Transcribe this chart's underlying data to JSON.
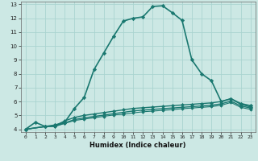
{
  "xlabel": "Humidex (Indice chaleur)",
  "bg_color": "#cce8e4",
  "line_color": "#1a7870",
  "grid_color": "#aad4d0",
  "xlim": [
    -0.5,
    23.5
  ],
  "ylim": [
    3.8,
    13.2
  ],
  "xticks": [
    0,
    1,
    2,
    3,
    4,
    5,
    6,
    7,
    8,
    9,
    10,
    11,
    12,
    13,
    14,
    15,
    16,
    17,
    18,
    19,
    20,
    21,
    22,
    23
  ],
  "yticks": [
    4,
    5,
    6,
    7,
    8,
    9,
    10,
    11,
    12,
    13
  ],
  "series": [
    {
      "x": [
        0,
        1,
        2,
        3,
        4,
        5,
        6,
        7,
        8,
        9,
        10,
        11,
        12,
        13,
        14,
        15,
        16,
        17,
        18,
        19,
        20,
        21,
        22,
        23
      ],
      "y": [
        4.0,
        4.5,
        4.2,
        4.3,
        4.5,
        5.5,
        6.3,
        8.3,
        9.5,
        10.7,
        11.8,
        12.0,
        12.1,
        12.85,
        12.9,
        12.4,
        11.85,
        9.0,
        8.0,
        7.5,
        6.0,
        6.2,
        5.85,
        5.7
      ],
      "marker": "D",
      "linestyle": "-",
      "linewidth": 1.2,
      "markersize": 2.2
    },
    {
      "x": [
        0,
        2,
        3,
        4,
        5,
        6,
        7,
        8,
        9,
        10,
        11,
        12,
        13,
        14,
        15,
        16,
        17,
        18,
        19,
        20,
        21,
        22,
        23
      ],
      "y": [
        4.0,
        4.2,
        4.25,
        4.6,
        4.85,
        5.0,
        5.1,
        5.2,
        5.3,
        5.4,
        5.5,
        5.55,
        5.6,
        5.65,
        5.7,
        5.75,
        5.8,
        5.85,
        5.9,
        6.0,
        6.2,
        5.8,
        5.6
      ],
      "marker": "D",
      "linestyle": "-",
      "linewidth": 1.0,
      "markersize": 2.0
    },
    {
      "x": [
        0,
        2,
        3,
        4,
        5,
        6,
        7,
        8,
        9,
        10,
        11,
        12,
        13,
        14,
        15,
        16,
        17,
        18,
        19,
        20,
        21,
        22,
        23
      ],
      "y": [
        4.0,
        4.2,
        4.22,
        4.45,
        4.7,
        4.82,
        4.92,
        5.02,
        5.12,
        5.22,
        5.32,
        5.38,
        5.43,
        5.48,
        5.53,
        5.58,
        5.63,
        5.68,
        5.73,
        5.83,
        6.03,
        5.68,
        5.53
      ],
      "marker": "D",
      "linestyle": "-",
      "linewidth": 1.0,
      "markersize": 2.0
    },
    {
      "x": [
        0,
        2,
        3,
        4,
        5,
        6,
        7,
        8,
        9,
        10,
        11,
        12,
        13,
        14,
        15,
        16,
        17,
        18,
        19,
        20,
        21,
        22,
        23
      ],
      "y": [
        4.0,
        4.18,
        4.2,
        4.42,
        4.63,
        4.73,
        4.83,
        4.93,
        5.03,
        5.08,
        5.18,
        5.26,
        5.31,
        5.36,
        5.41,
        5.48,
        5.53,
        5.58,
        5.63,
        5.73,
        5.93,
        5.58,
        5.43
      ],
      "marker": "D",
      "linestyle": "-",
      "linewidth": 0.8,
      "markersize": 1.8
    }
  ]
}
